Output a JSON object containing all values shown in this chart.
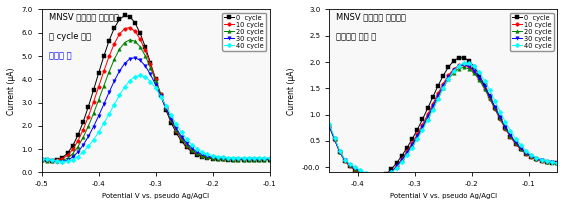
{
  "left_title_line1": "MNSV 바이러스 유전자가",
  "left_title_line2": "각 cycle 마다",
  "left_title_line3": "증폭될 때",
  "right_title_line1": "MNSV 바이러스 유전자가",
  "right_title_line2": "존재하지 않을 때",
  "xlabel": "Potential V vs. pseudo Ag/AgCl",
  "ylabel": "Current (μA)",
  "legend_labels": [
    "0  cycle",
    "10 cycle",
    "20 cycle",
    "30 cycle",
    "40 cycle"
  ],
  "legend_colors": [
    "black",
    "red",
    "green",
    "blue",
    "cyan"
  ],
  "legend_markers": [
    "s",
    "o",
    "^",
    "v",
    "D"
  ],
  "left_xlim": [
    -0.5,
    -0.1
  ],
  "left_ylim": [
    0.0,
    7.0
  ],
  "right_xlim": [
    -0.45,
    -0.05
  ],
  "right_ylim": [
    -0.1,
    3.0
  ],
  "left_xticks": [
    -0.5,
    -0.4,
    -0.3,
    -0.2,
    -0.1
  ],
  "right_xticks": [
    -0.4,
    -0.3,
    -0.2,
    -0.1
  ],
  "left_yticks": [
    0.0,
    1.0,
    2.0,
    3.0,
    4.0,
    5.0,
    6.0,
    7.0
  ],
  "right_yticks": [
    0.0,
    0.5,
    1.0,
    1.5,
    2.0,
    2.5,
    3.0
  ],
  "left_yticklabels": [
    "0.0",
    "1.0",
    "2.0",
    "3.0",
    "4.0",
    "5.0",
    "6.0",
    "7.0"
  ],
  "right_yticklabels": [
    "-00.0",
    "0.5",
    "1.0",
    "1.5",
    "2.0",
    "2.5",
    "3.0"
  ],
  "bg_color": "#ffffff"
}
